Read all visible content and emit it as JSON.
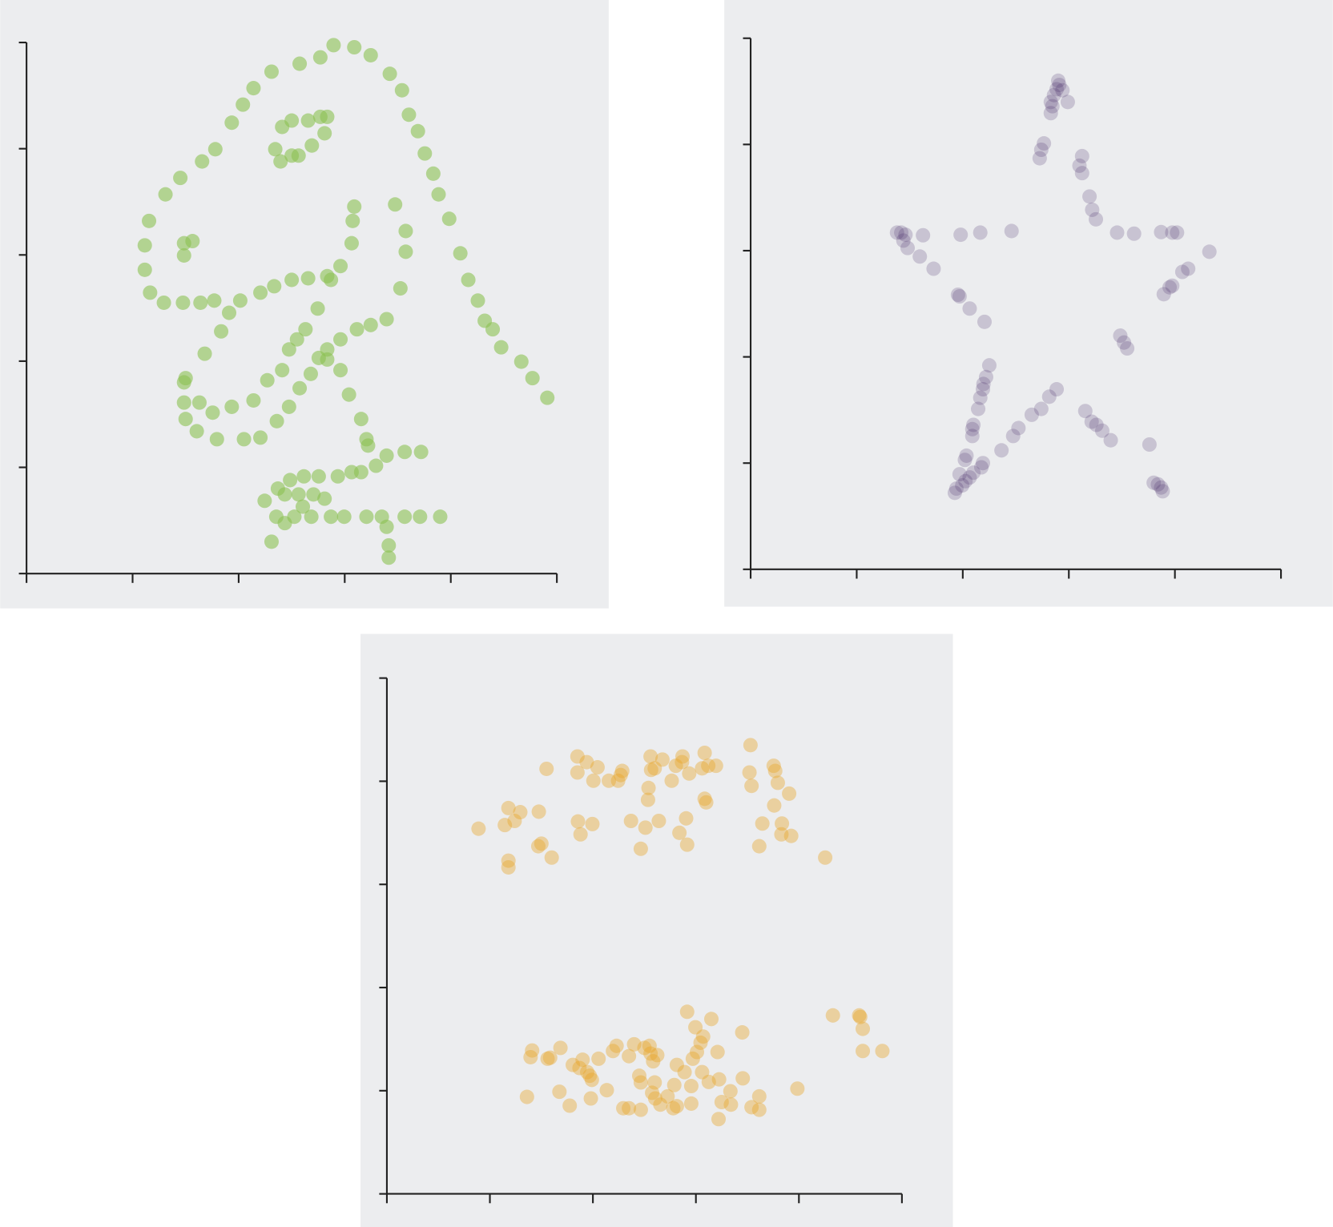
{
  "chart_data": [
    {
      "type": "scatter",
      "color": "#8cc152",
      "opacity": 0.6,
      "xlim": [
        0,
        100
      ],
      "ylim": [
        0,
        100
      ],
      "xticks": [
        0,
        20,
        40,
        60,
        80,
        100
      ],
      "yticks": [
        0,
        20,
        40,
        60,
        80,
        100
      ],
      "x": [
        55.4,
        51.5,
        46.2,
        42.8,
        40.8,
        38.7,
        35.6,
        33.1,
        29.0,
        26.2,
        23.1,
        22.3,
        22.3,
        23.3,
        25.9,
        29.5,
        32.8,
        35.4,
        40.3,
        44.1,
        46.7,
        50.0,
        53.1,
        56.7,
        59.2,
        61.3,
        61.5,
        61.8,
        57.4,
        54.9,
        52.6,
        48.2,
        49.5,
        51.0,
        45.4,
        42.8,
        38.7,
        35.1,
        32.6,
        30.0,
        33.6,
        36.7,
        38.2,
        29.7,
        29.7,
        30.0,
        32.1,
        35.9,
        41.0,
        44.1,
        47.2,
        49.5,
        51.5,
        53.6,
        55.1,
        56.7,
        59.2,
        62.3,
        64.9,
        67.9,
        70.5,
        71.5,
        71.5,
        69.5,
        46.9,
        48.2,
        50.0,
        53.1,
        55.4,
        56.7,
        56.2,
        53.8,
        51.3,
        50.0,
        47.9,
        29.7,
        29.7,
        31.3,
        57.9,
        61.8,
        64.9,
        68.5,
        70.8,
        72.1,
        73.8,
        75.1,
        76.7,
        77.7,
        79.7,
        81.8,
        83.3,
        85.1,
        86.4,
        87.9,
        89.5,
        93.3,
        95.4,
        98.2,
        56.7,
        59.2,
        60.8,
        63.1,
        64.1,
        64.4,
        74.4,
        71.3,
        67.9,
        65.9,
        63.1,
        61.3,
        58.7,
        55.1,
        52.3,
        49.7,
        47.4,
        44.9,
        48.7,
        51.3,
        54.1,
        56.2,
        52.1,
        48.7,
        46.2,
        47.1,
        50.5,
        53.7,
        57.4,
        59.9,
        64.1,
        67.0,
        71.3,
        74.2,
        78.0,
        67.9,
        68.3,
        68.3
      ],
      "y": [
        97.2,
        96.0,
        94.5,
        91.4,
        88.3,
        84.9,
        79.9,
        77.6,
        74.5,
        71.4,
        66.4,
        61.8,
        57.2,
        52.9,
        51.0,
        51.0,
        51.0,
        51.4,
        51.4,
        52.9,
        54.1,
        55.3,
        55.6,
        56.0,
        57.9,
        62.2,
        66.4,
        69.1,
        55.3,
        49.9,
        46.0,
        38.3,
        42.2,
        44.1,
        36.4,
        32.6,
        31.4,
        30.3,
        32.2,
        36.8,
        41.4,
        45.6,
        49.1,
        36.0,
        32.2,
        29.1,
        26.8,
        25.3,
        25.3,
        25.6,
        28.7,
        31.4,
        34.9,
        37.6,
        40.6,
        42.2,
        44.1,
        46.0,
        46.8,
        47.9,
        53.7,
        60.6,
        64.5,
        69.5,
        79.9,
        84.1,
        85.3,
        85.3,
        86.0,
        86.0,
        82.9,
        80.6,
        78.7,
        78.7,
        77.6,
        59.9,
        62.2,
        62.6,
        99.5,
        99.1,
        97.6,
        94.1,
        91.0,
        86.4,
        83.3,
        79.1,
        75.3,
        71.4,
        66.8,
        60.3,
        55.3,
        51.4,
        47.6,
        46.0,
        42.6,
        39.9,
        36.8,
        33.1,
        40.3,
        38.3,
        33.7,
        29.1,
        25.3,
        24.1,
        22.9,
        22.9,
        22.2,
        20.3,
        19.1,
        19.1,
        18.3,
        18.3,
        18.3,
        17.6,
        16.0,
        13.7,
        14.9,
        14.9,
        14.9,
        14.1,
        12.6,
        9.5,
        6.0,
        10.7,
        10.7,
        10.7,
        10.7,
        10.7,
        10.7,
        10.7,
        10.7,
        10.7,
        10.7,
        8.8,
        5.3,
        3.0
      ]
    },
    {
      "type": "scatter",
      "color": "#3b1d5e",
      "opacity": 0.2,
      "xlim": [
        0,
        100
      ],
      "ylim": [
        0,
        100
      ],
      "xticks": [
        0,
        20,
        40,
        60,
        80,
        100
      ],
      "yticks": [
        0,
        20,
        40,
        60,
        80,
        100
      ],
      "x": [
        58.0,
        58.2,
        57.7,
        58.8,
        57.2,
        56.6,
        56.9,
        56.6,
        59.8,
        55.3,
        54.8,
        54.5,
        62.5,
        62.0,
        62.5,
        63.9,
        64.4,
        65.1,
        27.6,
        28.4,
        29.2,
        28.8,
        29.6,
        31.9,
        34.5,
        32.5,
        39.6,
        43.3,
        49.2,
        69.1,
        72.3,
        77.4,
        79.5,
        80.4,
        86.5,
        82.5,
        81.4,
        79.5,
        79.0,
        77.9,
        39.1,
        39.4,
        41.3,
        44.1,
        69.7,
        70.4,
        71.0,
        45.0,
        44.4,
        43.9,
        43.8,
        43.3,
        42.9,
        42.0,
        41.8,
        41.8,
        40.7,
        40.4,
        43.8,
        43.5,
        39.4,
        42.0,
        41.3,
        40.5,
        39.9,
        38.8,
        38.5,
        57.7,
        56.3,
        54.8,
        53.0,
        50.5,
        49.5,
        47.3,
        63.1,
        64.3,
        65.2,
        66.3,
        67.9,
        75.2,
        76.0,
        76.8,
        77.4,
        77.7
      ],
      "y": [
        92.0,
        91.2,
        90.4,
        90.2,
        89.3,
        88.0,
        87.2,
        85.9,
        88.0,
        80.2,
        79.0,
        77.4,
        77.8,
        76.0,
        74.6,
        70.2,
        67.7,
        65.9,
        63.4,
        63.4,
        63.0,
        61.9,
        60.5,
        58.9,
        56.6,
        62.9,
        63.0,
        63.4,
        63.7,
        63.4,
        63.2,
        63.5,
        63.4,
        63.4,
        59.8,
        56.6,
        56.0,
        53.4,
        53.1,
        51.8,
        51.7,
        51.4,
        49.1,
        46.6,
        44.0,
        42.7,
        41.6,
        38.4,
        36.2,
        34.9,
        33.9,
        32.3,
        30.2,
        27.2,
        26.4,
        25.1,
        21.4,
        20.6,
        20.0,
        19.2,
        17.9,
        18.2,
        17.3,
        16.6,
        15.8,
        15.2,
        14.4,
        33.9,
        32.5,
        30.2,
        29.1,
        26.6,
        25.1,
        22.4,
        29.8,
        27.8,
        27.2,
        26.1,
        24.3,
        23.5,
        16.3,
        16.0,
        15.4,
        14.7
      ]
    },
    {
      "type": "scatter",
      "color": "#e8a628",
      "opacity": 0.4,
      "xlim": [
        0,
        100
      ],
      "ylim": [
        0,
        100
      ],
      "xticks": [
        0,
        20,
        40,
        60,
        80,
        100
      ],
      "yticks": [
        0,
        20,
        40,
        60,
        80,
        100
      ],
      "x": [
        17.8,
        23.6,
        22.9,
        24.8,
        25.9,
        29.5,
        23.6,
        23.6,
        29.4,
        30.0,
        32.0,
        31.0,
        37.0,
        38.8,
        40.9,
        37.0,
        40.1,
        43.1,
        44.9,
        45.7,
        45.4,
        37.1,
        39.9,
        37.6,
        47.4,
        50.2,
        52.8,
        49.3,
        51.2,
        53.5,
        51.3,
        52.0,
        50.8,
        50.7,
        55.3,
        56.1,
        57.4,
        57.3,
        58.7,
        58.1,
        56.8,
        58.3,
        61.7,
        61.2,
        62.4,
        63.9,
        61.7,
        62.0,
        70.6,
        70.4,
        70.8,
        75.1,
        75.4,
        75.9,
        78.1,
        75.2,
        72.9,
        76.7,
        78.5,
        76.6,
        72.3,
        85.1,
        28.2,
        27.9,
        31.2,
        31.7,
        33.7,
        38.0,
        36.1,
        37.4,
        38.9,
        39.4,
        39.8,
        41.1,
        43.9,
        44.6,
        48.0,
        47.0,
        50.0,
        51.0,
        51.2,
        52.5,
        51.7,
        58.3,
        63.0,
        59.9,
        61.4,
        60.9,
        60.2,
        59.4,
        64.2,
        69.0,
        56.3,
        57.8,
        61.2,
        49.0,
        49.3,
        52.0,
        55.8,
        59.1,
        62.5,
        64.5,
        66.7,
        69.1,
        27.2,
        33.5,
        35.5,
        39.6,
        42.7,
        45.9,
        47.0,
        49.3,
        51.5,
        52.1,
        53.1,
        54.5,
        55.6,
        56.3,
        59.1,
        65.0,
        66.8,
        70.8,
        72.3,
        72.3,
        64.4,
        79.7,
        86.6,
        91.7,
        91.9,
        92.4,
        92.4,
        96.2
      ],
      "y": [
        70.8,
        74.8,
        71.5,
        72.3,
        74.0,
        74.1,
        64.6,
        63.3,
        67.4,
        67.9,
        65.2,
        82.4,
        84.8,
        83.7,
        82.7,
        81.7,
        80.1,
        80.1,
        80.1,
        82.0,
        81.2,
        72.2,
        71.7,
        69.7,
        72.3,
        71.0,
        72.3,
        66.9,
        84.8,
        84.2,
        82.2,
        82.5,
        78.7,
        76.4,
        80.1,
        83.0,
        84.8,
        83.7,
        81.5,
        72.8,
        70.0,
        67.7,
        85.5,
        82.5,
        83.0,
        83.0,
        76.6,
        75.9,
        87.0,
        81.7,
        79.1,
        83.0,
        82.0,
        79.7,
        77.6,
        75.3,
        71.8,
        71.8,
        69.4,
        69.7,
        67.4,
        65.2,
        27.8,
        26.5,
        26.2,
        26.4,
        28.3,
        26.0,
        25.0,
        24.4,
        23.6,
        22.9,
        22.1,
        26.2,
        27.7,
        28.7,
        29.0,
        26.7,
        28.3,
        28.7,
        27.2,
        26.9,
        25.7,
        35.3,
        33.9,
        32.3,
        30.5,
        29.3,
        27.5,
        26.2,
        27.5,
        31.3,
        25.0,
        23.6,
        23.6,
        22.9,
        21.6,
        21.6,
        21.1,
        20.9,
        21.7,
        22.2,
        19.9,
        22.4,
        18.8,
        19.8,
        17.1,
        18.5,
        20.1,
        16.6,
        16.6,
        16.3,
        19.6,
        18.5,
        17.3,
        18.9,
        16.6,
        17.0,
        17.5,
        17.8,
        17.3,
        16.8,
        18.9,
        16.3,
        14.5,
        20.4,
        34.6,
        34.6,
        34.3,
        32.0,
        27.7,
        27.7
      ]
    }
  ]
}
